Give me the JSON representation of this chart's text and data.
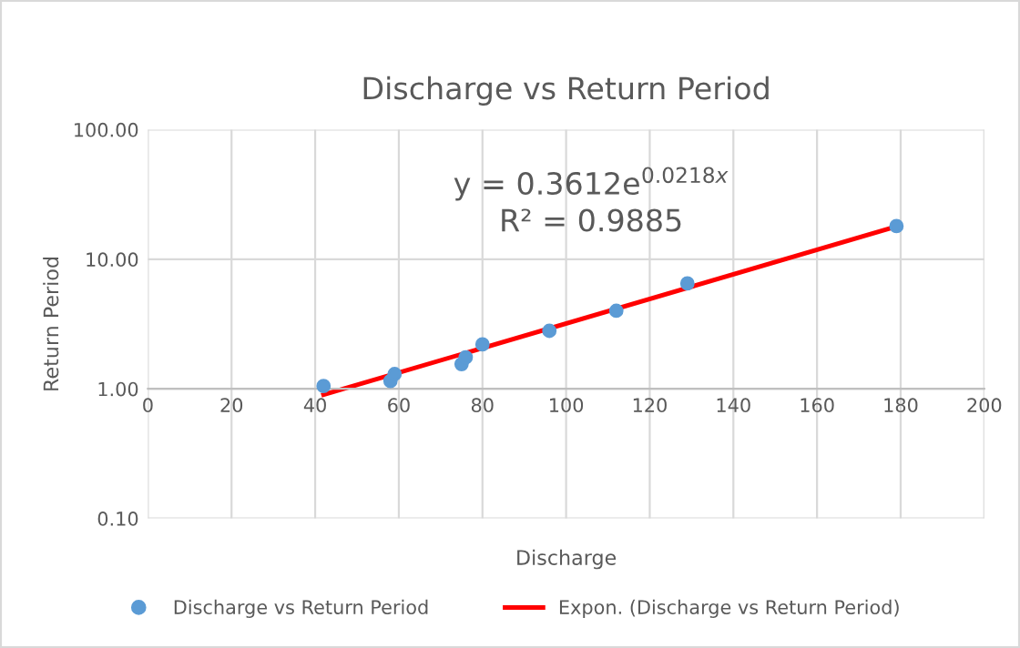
{
  "chart_data": {
    "type": "scatter",
    "title": "Discharge vs Return Period",
    "xlabel": "Discharge",
    "ylabel": "Return Period",
    "annotations": [
      "y = 0.3612e$^{0.0218x}$",
      "R² = 0.9885"
    ],
    "series": [
      {
        "name": "Discharge vs Return Period",
        "color": "#5b9bd5",
        "marker": "circle",
        "x": [
          42,
          58,
          59,
          75,
          76,
          80,
          96,
          112,
          129,
          179
        ],
        "values": [
          1.05,
          1.15,
          1.3,
          1.55,
          1.75,
          2.2,
          2.8,
          4.0,
          6.5,
          18
        ]
      },
      {
        "name": "Expon. (Discharge vs Return Period)",
        "type": "line",
        "marker": "none",
        "color": "#ff0000",
        "x": [
          42,
          179
        ],
        "values": [
          0.9,
          17.9
        ]
      }
    ],
    "xlim": [
      0,
      200
    ],
    "xticks": [
      0,
      20,
      40,
      60,
      80,
      100,
      120,
      140,
      160,
      180,
      200
    ],
    "ylim": [
      0.1,
      100
    ],
    "yticks": [
      {
        "value": 0.1,
        "label": "0.10"
      },
      {
        "value": 1,
        "label": "1.00"
      },
      {
        "value": 10,
        "label": "10.00"
      },
      {
        "value": 100,
        "label": "100.00"
      }
    ],
    "log": "y",
    "grid": true,
    "legend": "bottom",
    "line_style": "solid"
  }
}
